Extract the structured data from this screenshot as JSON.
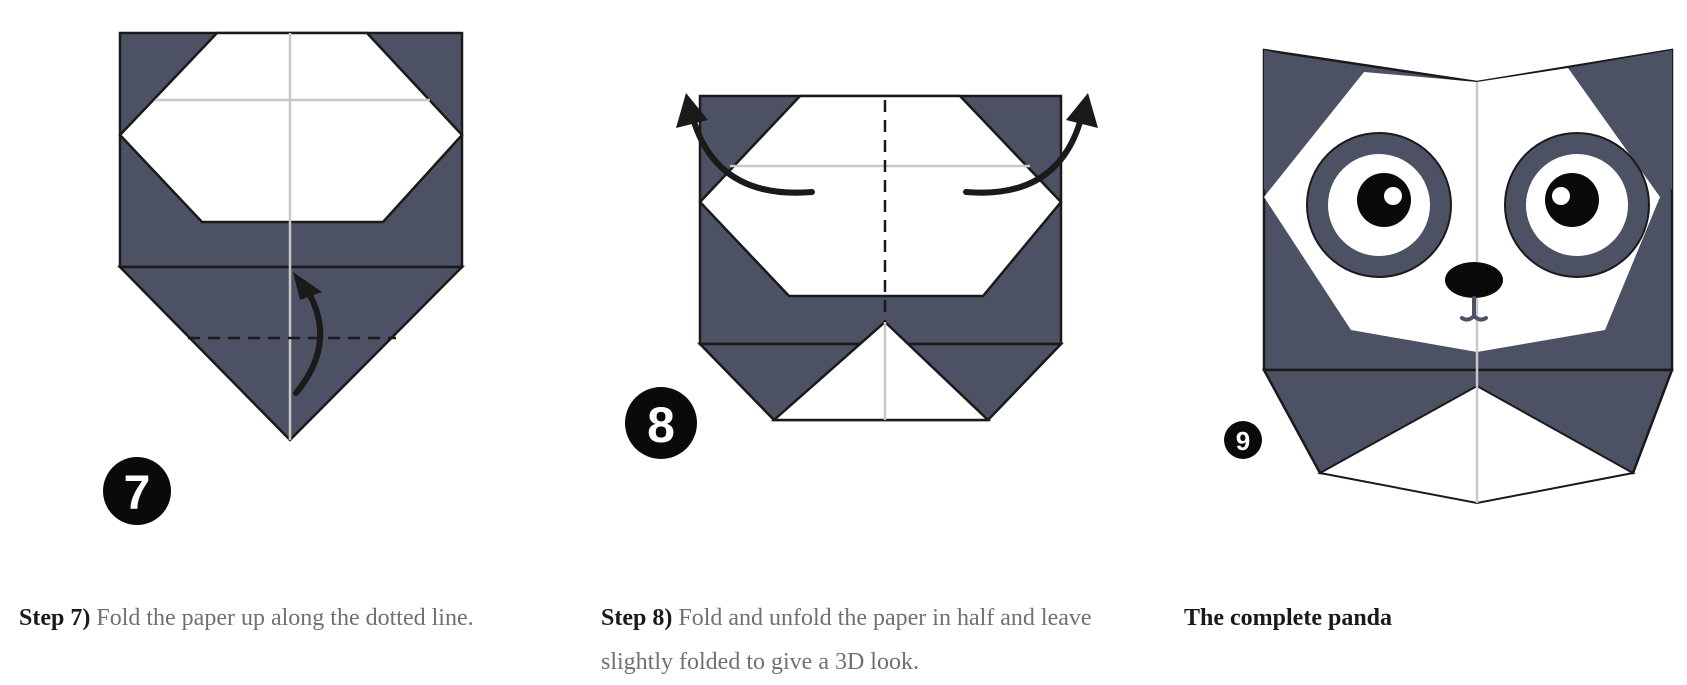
{
  "colors": {
    "paper_dark": "#4d5164",
    "outline": "#1a1a1a",
    "crease": "#c8c8c8",
    "badge": "#0a0a0a"
  },
  "steps": [
    {
      "badge": "7",
      "label": "Step 7)",
      "text": " Fold the paper up along the dotted line."
    },
    {
      "badge": "8",
      "label": "Step 8)",
      "text": " Fold and unfold the paper in half and leave slightly folded to give a 3D look."
    },
    {
      "badge": "9",
      "label": "The complete panda",
      "text": ""
    }
  ]
}
